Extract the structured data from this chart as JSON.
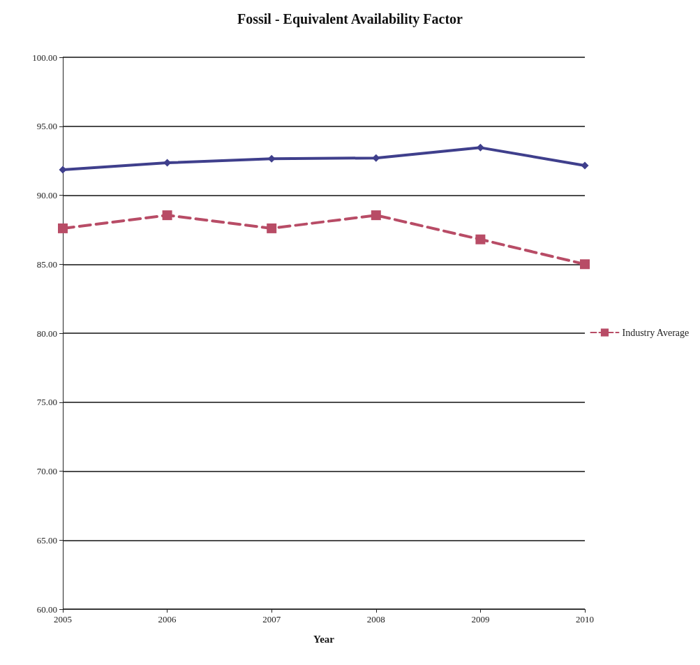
{
  "chart_data": {
    "type": "line",
    "title": "Fossil - Equivalent Availability Factor",
    "xlabel": "Year",
    "categories": [
      "2005",
      "2006",
      "2007",
      "2008",
      "2009",
      "2010"
    ],
    "series": [
      {
        "color": "#3f3f8c",
        "marker": "diamond",
        "line_style": "solid",
        "values": [
          91.85,
          92.35,
          92.65,
          92.7,
          93.45,
          92.15
        ]
      },
      {
        "name": "Industry Average",
        "color": "#b84c66",
        "marker": "square",
        "line_style": "dashed",
        "values": [
          87.6,
          88.55,
          87.6,
          88.55,
          86.8,
          85.0
        ]
      }
    ],
    "ylim": [
      60,
      100
    ],
    "yticks": [
      {
        "value": 60,
        "label": "60.00"
      },
      {
        "value": 65,
        "label": "65.00"
      },
      {
        "value": 70,
        "label": "70.00"
      },
      {
        "value": 75,
        "label": "75.00"
      },
      {
        "value": 80,
        "label": "80.00"
      },
      {
        "value": 85,
        "label": "85.00"
      },
      {
        "value": 90,
        "label": "90.00"
      },
      {
        "value": 95,
        "label": "95.00"
      },
      {
        "value": 100,
        "label": "100.00"
      }
    ],
    "grid": "y",
    "legend": "right"
  }
}
